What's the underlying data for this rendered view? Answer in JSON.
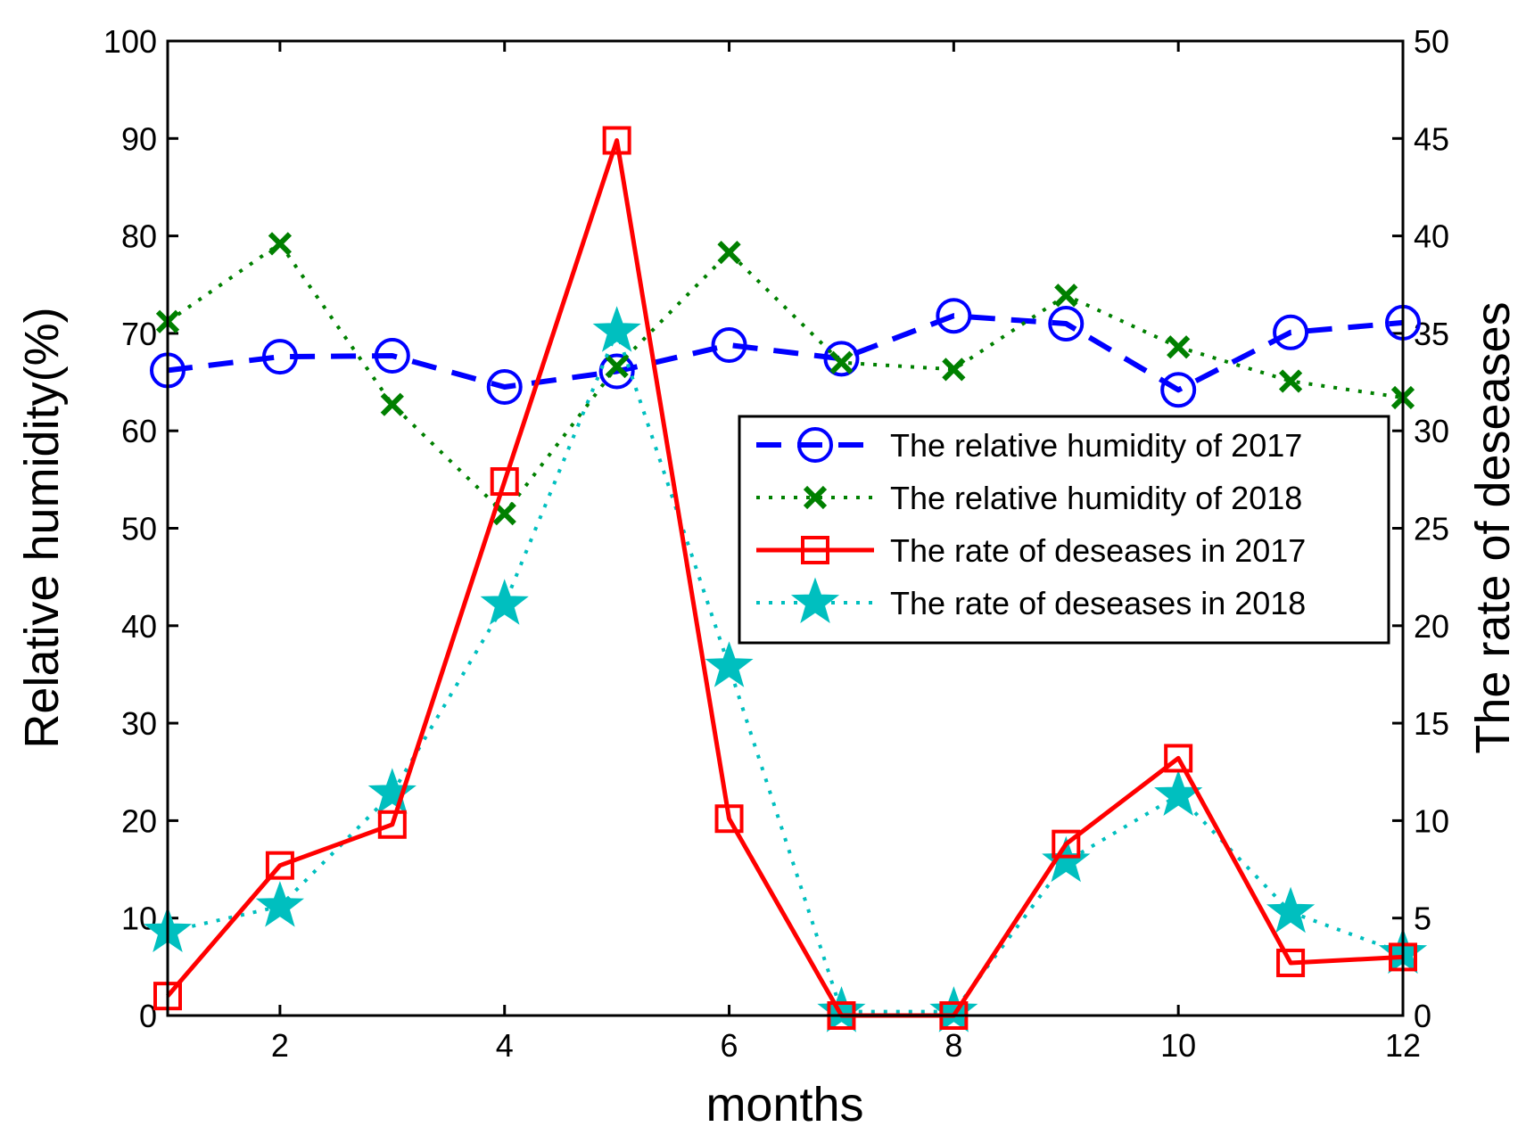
{
  "chart_data": {
    "type": "line",
    "xlabel": "months",
    "ylabel_left": "Relative humidity(%)",
    "ylabel_right": "The rate of deseases",
    "xlim": [
      1,
      12
    ],
    "ylim_left": [
      0,
      100
    ],
    "ylim_right": [
      0,
      50
    ],
    "x_ticks": [
      2,
      4,
      6,
      8,
      10,
      12
    ],
    "y_left_ticks": [
      0,
      10,
      20,
      30,
      40,
      50,
      60,
      70,
      80,
      90,
      100
    ],
    "y_right_ticks": [
      0,
      5,
      10,
      15,
      20,
      25,
      30,
      35,
      40,
      45,
      50
    ],
    "x": [
      1,
      2,
      3,
      4,
      5,
      6,
      7,
      8,
      9,
      10,
      11,
      12
    ],
    "legend_position": "center-right",
    "series": [
      {
        "name": "The relative humidity of 2017",
        "axis": "left",
        "color": "#0000ff",
        "line_style": "dashed",
        "marker": "circle",
        "values": [
          66.2,
          67.6,
          67.7,
          64.5,
          66.1,
          68.8,
          67.4,
          71.8,
          71.0,
          64.2,
          70.1,
          71.1
        ]
      },
      {
        "name": "The relative humidity of 2018",
        "axis": "left",
        "color": "#008000",
        "line_style": "dotted",
        "marker": "x",
        "values": [
          71.2,
          79.2,
          62.7,
          51.5,
          66.6,
          78.3,
          67.0,
          66.3,
          73.9,
          68.6,
          65.1,
          63.4
        ]
      },
      {
        "name": "The rate of deseases in 2017",
        "axis": "right",
        "color": "#ff0000",
        "line_style": "solid",
        "marker": "square",
        "values": [
          1.0,
          7.7,
          9.8,
          27.4,
          44.9,
          10.1,
          0.0,
          0.0,
          8.8,
          13.2,
          2.7,
          3.0
        ]
      },
      {
        "name": "The rate of deseases in 2018",
        "axis": "right",
        "color": "#00bfbf",
        "line_style": "dotted",
        "marker": "star",
        "values": [
          4.3,
          5.6,
          11.4,
          21.1,
          35.1,
          17.9,
          0.2,
          0.2,
          7.9,
          11.3,
          5.3,
          3.2
        ]
      }
    ]
  }
}
